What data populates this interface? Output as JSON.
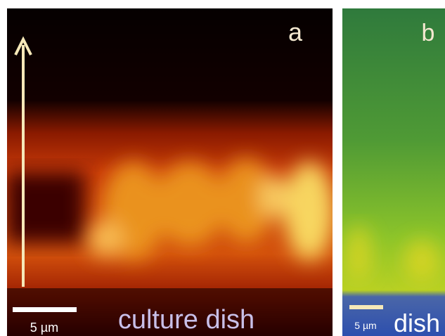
{
  "panels": [
    {
      "label": "a",
      "scale_bar": "5 µm",
      "caption": "culture dish"
    },
    {
      "label": "b",
      "scale_bar": "5 µm",
      "caption": "dish"
    }
  ]
}
